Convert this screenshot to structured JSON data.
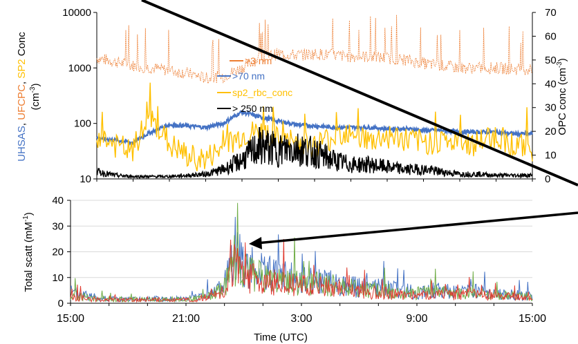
{
  "chart_data": [
    {
      "type": "line",
      "yscale": "log",
      "ylim": [
        10,
        10000
      ],
      "y_ticks": [
        "10000",
        "1000",
        "100",
        "10"
      ],
      "y2lim": [
        0,
        70
      ],
      "y2_ticks": [
        "70",
        "60",
        "50",
        "40",
        "30",
        "20",
        "10",
        "0"
      ],
      "ylabel_parts": [
        {
          "text": "UHSAS",
          "color": "#4472c4"
        },
        {
          "text": ", ",
          "color": "#000000"
        },
        {
          "text": "UFCPC",
          "color": "#ed7d31"
        },
        {
          "text": ", ",
          "color": "#000000"
        },
        {
          "text": "SP2",
          "color": "#ffc000"
        },
        {
          "text": " Conc",
          "color": "#000000"
        }
      ],
      "ylabel_unit": "(cm",
      "ylabel_unit_sup": "-3",
      "ylabel_unit_close": ")",
      "y2label": "OPC conc  (cm",
      "y2label_sup": "-3",
      "y2label_close": ")",
      "x_hours": [
        15,
        39
      ],
      "series": [
        {
          "name": ">3 nm",
          "axis": "left",
          "color": "#ed7d31",
          "x": [
            15,
            16,
            17,
            18,
            19,
            20,
            21,
            22,
            23,
            24,
            25,
            26,
            27,
            28,
            29,
            30,
            31,
            32,
            33,
            34,
            35,
            36,
            37,
            38,
            39
          ],
          "y": [
            1500,
            1300,
            1100,
            1000,
            900,
            800,
            650,
            700,
            1000,
            1500,
            1800,
            1700,
            1800,
            1700,
            1600,
            1600,
            1500,
            1400,
            1200,
            1100,
            1000,
            1000,
            1000,
            950,
            950
          ]
        },
        {
          "name": ">70 nm",
          "axis": "left",
          "color": "#4472c4",
          "x": [
            15,
            16,
            17,
            18,
            19,
            20,
            21,
            22,
            23,
            24,
            25,
            26,
            27,
            28,
            29,
            30,
            31,
            32,
            33,
            34,
            35,
            36,
            37,
            38,
            39
          ],
          "y": [
            55,
            50,
            45,
            70,
            95,
            90,
            85,
            100,
            160,
            130,
            110,
            95,
            90,
            85,
            85,
            85,
            80,
            80,
            75,
            75,
            70,
            70,
            70,
            65,
            65
          ]
        },
        {
          "name": "sp2_rbc_conc",
          "axis": "left",
          "color": "#ffc000",
          "x": [
            15,
            16,
            17,
            18,
            19,
            20,
            21,
            22,
            23,
            24,
            25,
            26,
            27,
            28,
            29,
            30,
            31,
            32,
            33,
            34,
            35,
            36,
            37,
            38,
            39
          ],
          "y": [
            60,
            40,
            30,
            110,
            40,
            25,
            22,
            35,
            60,
            70,
            50,
            45,
            40,
            55,
            80,
            45,
            60,
            50,
            45,
            50,
            40,
            45,
            60,
            40,
            35
          ]
        },
        {
          "name": "> 250 nm",
          "axis": "right",
          "color": "#000000",
          "x": [
            15,
            16,
            17,
            18,
            19,
            20,
            21,
            22,
            23,
            24,
            25,
            26,
            27,
            28,
            29,
            30,
            31,
            32,
            33,
            34,
            35,
            36,
            37,
            38,
            39
          ],
          "y": [
            3,
            1.5,
            1,
            1,
            1,
            1.5,
            2,
            4,
            8,
            14,
            12,
            13,
            11,
            8,
            6,
            6,
            5,
            4,
            4,
            3,
            2,
            2,
            1.5,
            1.5,
            1.5
          ]
        }
      ]
    },
    {
      "type": "line",
      "ylim": [
        0,
        40
      ],
      "y_ticks": [
        "40",
        "30",
        "20",
        "10",
        "0"
      ],
      "ylabel": "Total scatt (mM",
      "ylabel_sup": "-1",
      "ylabel_close": ")",
      "x_hours": [
        15,
        39
      ],
      "x_ticks": [
        "15:00",
        "21:00",
        "3:00",
        "9:00",
        "15:00"
      ],
      "xlabel": "Time (UTC)",
      "series": [
        {
          "color": "#4472c4",
          "x": [
            15,
            16,
            17,
            18,
            19,
            20,
            21,
            22,
            23,
            23.5,
            24,
            25,
            26,
            27,
            28,
            29,
            30,
            31,
            32,
            33,
            34,
            35,
            36,
            37,
            38,
            39
          ],
          "y": [
            5,
            3,
            2,
            2,
            2,
            2,
            2,
            3,
            8,
            25,
            17,
            14,
            12,
            11,
            10,
            9,
            7,
            7,
            6,
            5,
            6,
            5,
            6,
            4,
            4,
            3
          ]
        },
        {
          "color": "#70ad47",
          "x": [
            15,
            16,
            17,
            18,
            19,
            20,
            21,
            22,
            23,
            23.5,
            24,
            25,
            26,
            27,
            28,
            29,
            30,
            31,
            32,
            33,
            34,
            35,
            36,
            37,
            38,
            39
          ],
          "y": [
            4,
            2.5,
            1.8,
            1.8,
            1.8,
            1.8,
            1.8,
            2.5,
            7,
            22,
            15,
            12,
            10,
            9.5,
            9,
            8,
            6,
            6,
            5,
            4.5,
            5,
            4.5,
            5,
            3.5,
            3.5,
            2.5
          ]
        },
        {
          "color": "#e03c31",
          "x": [
            15,
            16,
            17,
            18,
            19,
            20,
            21,
            22,
            23,
            23.5,
            24,
            25,
            26,
            27,
            28,
            29,
            30,
            31,
            32,
            33,
            34,
            35,
            36,
            37,
            38,
            39
          ],
          "y": [
            3,
            2,
            1.5,
            1.5,
            1.5,
            1.5,
            1.5,
            2,
            6,
            18,
            13,
            10,
            9,
            8,
            7.5,
            7,
            5,
            5,
            4,
            4,
            4,
            4,
            4,
            3,
            3,
            2
          ]
        }
      ]
    }
  ]
}
